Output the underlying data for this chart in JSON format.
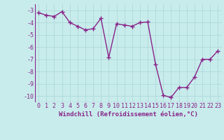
{
  "x": [
    0,
    1,
    2,
    3,
    4,
    5,
    6,
    7,
    8,
    9,
    10,
    11,
    12,
    13,
    14,
    15,
    16,
    17,
    18,
    19,
    20,
    21,
    22,
    23
  ],
  "y": [
    -3.2,
    -3.4,
    -3.5,
    -3.1,
    -4.0,
    -4.3,
    -4.6,
    -4.5,
    -3.65,
    -6.85,
    -4.1,
    -4.2,
    -4.3,
    -4.0,
    -3.95,
    -7.4,
    -9.95,
    -10.1,
    -9.3,
    -9.3,
    -8.45,
    -7.0,
    -7.0,
    -6.3
  ],
  "line_color": "#882288",
  "marker": "+",
  "marker_size": 4,
  "xlabel": "Windchill (Refroidissement éolien,°C)",
  "xlabel_fontsize": 6.5,
  "xlim": [
    -0.5,
    23.5
  ],
  "ylim": [
    -10.5,
    -2.5
  ],
  "yticks": [
    -3,
    -4,
    -5,
    -6,
    -7,
    -8,
    -9,
    -10
  ],
  "xticks": [
    0,
    1,
    2,
    3,
    4,
    5,
    6,
    7,
    8,
    9,
    10,
    11,
    12,
    13,
    14,
    15,
    16,
    17,
    18,
    19,
    20,
    21,
    22,
    23
  ],
  "tick_fontsize": 6.0,
  "grid_color": "#b0d8d8",
  "background_color": "#c8ecec",
  "linewidth": 1.0,
  "markeredgewidth": 1.0
}
